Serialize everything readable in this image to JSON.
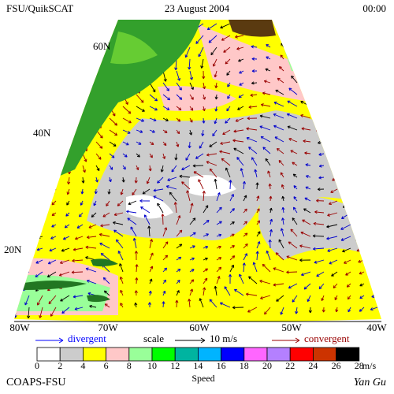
{
  "header": {
    "title": "FSU/QuikSCAT",
    "date": "23 August 2004",
    "time": "00:00"
  },
  "map": {
    "lat_labels": [
      "60N",
      "40N",
      "20N"
    ],
    "lon_labels": [
      "80W",
      "70W",
      "60W",
      "50W",
      "40W"
    ]
  },
  "legend": {
    "divergent": "divergent",
    "scale": "scale",
    "scale_value": "10 m/s",
    "convergent": "convergent",
    "colors": [
      "#ffffff",
      "#cccccc",
      "#ffff00",
      "#ffc8c8",
      "#99ff99",
      "#00ff00",
      "#00b4a0",
      "#00b4ff",
      "#0000ff",
      "#ff66ff",
      "#b480ff",
      "#ff0000",
      "#cc3300",
      "#000000"
    ],
    "labels": [
      "0",
      "2",
      "4",
      "6",
      "8",
      "10",
      "12",
      "14",
      "16",
      "18",
      "20",
      "22",
      "24",
      "26",
      "28"
    ],
    "unit": "m/s",
    "caption": "Speed"
  },
  "footer": {
    "credit": "COAPS-FSU",
    "author": "Yan Gu"
  }
}
